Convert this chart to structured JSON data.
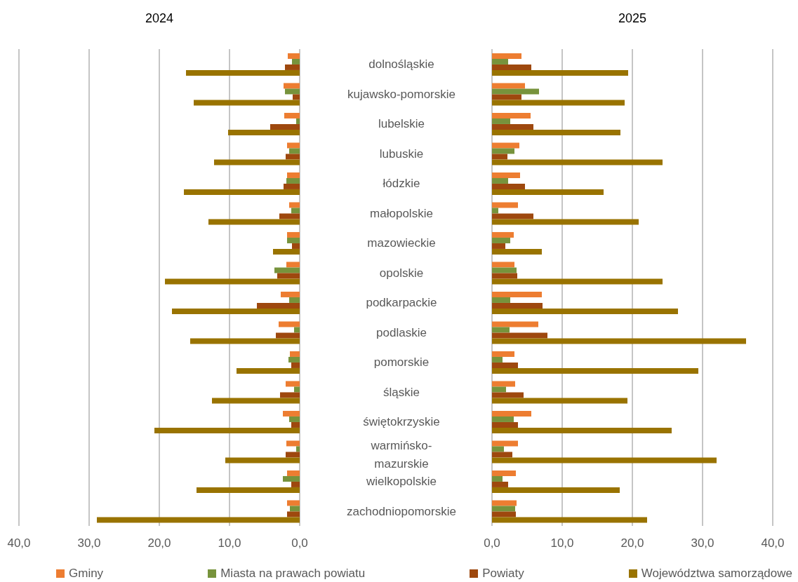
{
  "chart_data": [
    {
      "type": "bar",
      "orientation": "horizontal",
      "title": "2024",
      "categories": [
        "dolnośląskie",
        "kujawsko-pomorskie",
        "lubelskie",
        "lubuskie",
        "łódzkie",
        "małopolskie",
        "mazowieckie",
        "opolskie",
        "podkarpackie",
        "podlaskie",
        "pomorskie",
        "śląskie",
        "świętokrzyskie",
        "warmińsko-mazurskie",
        "wielkopolskie",
        "zachodniopomorskie"
      ],
      "series": [
        {
          "name": "Gminy",
          "color": "#ed7d31",
          "values": [
            1.7,
            2.3,
            2.2,
            1.8,
            1.8,
            1.5,
            1.8,
            1.9,
            2.7,
            3.0,
            1.4,
            2.0,
            2.4,
            1.9,
            1.8,
            1.8
          ]
        },
        {
          "name": "Miasta na prawach powiatu",
          "color": "#77933c",
          "values": [
            1.1,
            2.1,
            0.5,
            1.5,
            1.9,
            1.2,
            1.8,
            3.6,
            1.5,
            0.8,
            1.6,
            0.8,
            1.5,
            0.5,
            2.4,
            1.4
          ]
        },
        {
          "name": "Powiaty",
          "color": "#9e480e",
          "values": [
            2.1,
            1.0,
            4.2,
            2.0,
            2.3,
            2.9,
            1.1,
            3.2,
            6.1,
            3.4,
            1.2,
            2.8,
            1.2,
            2.0,
            1.2,
            1.8
          ]
        },
        {
          "name": "Województwa samorządowe",
          "color": "#997300",
          "values": [
            16.2,
            15.1,
            10.2,
            12.2,
            16.5,
            13.0,
            3.8,
            19.2,
            18.2,
            15.6,
            9.0,
            12.5,
            20.7,
            10.6,
            14.7,
            28.9
          ]
        }
      ],
      "xlim": [
        40,
        0
      ],
      "xticks": [
        {
          "value": 40,
          "label": "40,0"
        },
        {
          "value": 30,
          "label": "30,0"
        },
        {
          "value": 20,
          "label": "20,0"
        },
        {
          "value": 10,
          "label": "10,0"
        },
        {
          "value": 0,
          "label": "0,0"
        }
      ],
      "grid": "x",
      "legend": "bottom"
    },
    {
      "type": "bar",
      "orientation": "horizontal",
      "title": "2025",
      "series": [
        {
          "color": "#ed7d31",
          "values": [
            4.2,
            4.7,
            5.5,
            3.9,
            4.0,
            3.7,
            3.1,
            3.2,
            7.1,
            6.6,
            3.2,
            3.3,
            5.6,
            3.7,
            3.4,
            3.5
          ]
        },
        {
          "color": "#77933c",
          "values": [
            2.3,
            6.7,
            2.6,
            3.2,
            2.3,
            0.9,
            2.6,
            3.5,
            2.6,
            2.5,
            1.5,
            2.0,
            3.1,
            1.7,
            1.5,
            3.3
          ]
        },
        {
          "color": "#9e480e",
          "values": [
            5.6,
            4.2,
            5.9,
            2.2,
            4.7,
            5.9,
            1.9,
            3.6,
            7.2,
            7.9,
            3.7,
            4.5,
            3.7,
            2.9,
            2.3,
            3.4
          ]
        },
        {
          "color": "#997300",
          "values": [
            19.4,
            18.9,
            18.3,
            24.3,
            15.9,
            20.9,
            7.1,
            24.3,
            26.5,
            36.2,
            29.4,
            19.3,
            25.6,
            32.0,
            18.2,
            22.1
          ]
        }
      ],
      "xlim": [
        0,
        40
      ],
      "xticks": [
        {
          "value": 0,
          "label": "0,0"
        },
        {
          "value": 10,
          "label": "10,0"
        },
        {
          "value": 20,
          "label": "20,0"
        },
        {
          "value": 30,
          "label": "30,0"
        },
        {
          "value": 40,
          "label": "40,0"
        }
      ],
      "grid": "x",
      "tick_labels": "x"
    }
  ]
}
